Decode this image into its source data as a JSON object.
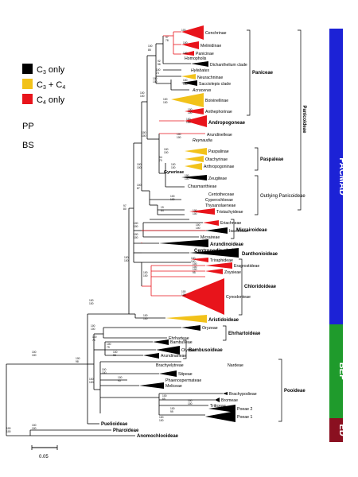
{
  "legend": {
    "c3_label": "C",
    "c3_sub": "3",
    "c3_suffix": " only",
    "c3c4_label": "C",
    "c3c4_sub1": "3",
    "c3c4_mid": " + C",
    "c3c4_sub2": "4",
    "c4_label": "C",
    "c4_sub": "4",
    "c4_suffix": " only",
    "pp": "PP",
    "bs": "BS",
    "colors": {
      "c3": "#000000",
      "c3c4": "#f2c21a",
      "c4": "#e8141b"
    }
  },
  "scale_bar": {
    "label": "0.05"
  },
  "groups": {
    "pacmad": {
      "label": "PACMAD",
      "color": "#1c22d6"
    },
    "bep": {
      "label": "BEP",
      "color": "#1f9b2c"
    },
    "ed": {
      "label": "ED",
      "color": "#8a1020"
    }
  },
  "brackets": {
    "paniceae": "Paniceae",
    "panicoideae": "Panicoideae",
    "paspaleae": "Paspaleae",
    "outlying": "Outlying Panicoideae",
    "micrairoideae": "Micrairoideae",
    "danthonioideae": "Danthonioideae",
    "centropodia": "Centropodia clade",
    "chloridoideae": "Chloridoideae",
    "aristidoideae": "Aristidoideae",
    "ehrhartoideae": "Ehrhartoideae",
    "bambusoideae": "Bambusoideae",
    "pooideae": "Pooideae"
  },
  "taxa": {
    "cenchrinae": "Cenchrinae",
    "melinidinae": "Melinidinae",
    "panicinae": "Panicinae",
    "homopholis": "Homopholis",
    "dichanthelium": "Dichanthelium clade",
    "hylebates": "Hylebates",
    "neurachninae": "Neurachninae",
    "sacciolepis": "Sacciolepis clade",
    "acroceras": "Acroceras",
    "boivinellinae": "Boivinellinae",
    "anthephorinae": "Anthephorinae",
    "andropogoneae": "Andropogoneae",
    "arundinelleae": "Arundinelleae",
    "reynaudia": "Reynaudia",
    "paspalinae": "Paspalinae",
    "otachyrinae": "Otachyrinae",
    "arthropogoninae": "Arthropogoninae",
    "gynerieae": "Gynerieae",
    "zeugiteae": "Zeugiteae",
    "chasmanthieae": "Chasmanthieae",
    "centotheceae": "Centotheceae",
    "cyperochloeae": "Cyperochloeae",
    "thysanolaeneae": "Thysanolaeneae",
    "tristachyideae": "Tristachyideae",
    "eriachneae": "Eriachneae",
    "isachneae": "Isachneae",
    "micraireae": "Micraireae",
    "arundinoideae": "Arundinoideae",
    "triraphideae": "Triraphideae",
    "eragrostideae": "Eragrostideae",
    "zoysieae": "Zoysieae",
    "cynodonteae": "Cynodonteae",
    "oryzeae": "Oryzeae",
    "ehrharteae": "Ehrharteae",
    "bambuseae": "Bambuseae",
    "olyreae": "Olyreae",
    "arundinarieae": "Arundinarieae",
    "brachyelytreae": "Brachyelytreae",
    "nardeae": "Nardeae",
    "stipeae": "Stipeae",
    "phaenospermateae": "Phaenospermateae",
    "meliceae": "Meliceae",
    "brachypodieae": "Brachypodieae",
    "bromeae": "Bromeae",
    "triticeae": "Triticeae",
    "poeae2": "Poeae 2",
    "poeae1": "Poeae 1",
    "puelioideae": "Puelioideae",
    "pharoideae": "Pharoideae",
    "anomochlooideae": "Anomochlooideae"
  },
  "support": {
    "s100": "100",
    "s99": "99",
    "s98": "98",
    "s97": "97",
    "s95": "95",
    "s92": "92",
    "s87": "87",
    "s85": "85",
    "s84": "84",
    "s80": "80",
    "s79": "79",
    "s78": "78",
    "s76": "76",
    "s73": "73",
    "s70": "70",
    "s65": "65",
    "s63": "63",
    "s56": "56",
    "s54": "54",
    "s34": "34",
    "s19": "19",
    "s88": "88"
  }
}
